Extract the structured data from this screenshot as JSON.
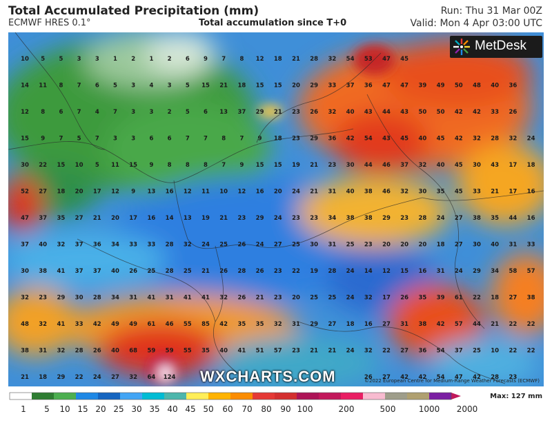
{
  "header": {
    "title": "Total Accumulated Precipitation (mm)",
    "model": "ECMWF HRES 0.1°",
    "accumulation": "Total accumulation since T+0",
    "run": "Run: Thu 31 Mar 00Z",
    "valid": "Valid: Mon 4 Apr 03:00 UTC"
  },
  "branding": {
    "logo_text": "MetDesk",
    "watermark": "WXCHARTS.COM",
    "credit": "©2022 European Centre for Medium-Range Weather Forecasts (ECMWF)"
  },
  "legend": {
    "max_label": "Max: 127 mm",
    "ticks": [
      "1",
      "5",
      "10",
      "15",
      "20",
      "25",
      "30",
      "35",
      "40",
      "45",
      "50",
      "60",
      "70",
      "80",
      "90",
      "100",
      "200",
      "500",
      "1000",
      "2000"
    ],
    "colors": [
      "#ffffff",
      "#2e7d32",
      "#4caf50",
      "#1e88e5",
      "#1565c0",
      "#42a5f5",
      "#00bcd4",
      "#4db6ac",
      "#ffee58",
      "#ffb300",
      "#fb8c00",
      "#e53935",
      "#d32f2f",
      "#ad1457",
      "#c2185b",
      "#e91e63",
      "#f8bbd0",
      "#9e9d8a",
      "#b0a070",
      "#7b1fa2"
    ]
  },
  "map": {
    "values": [
      [
        "10",
        "5",
        "5",
        "3",
        "3",
        "1",
        "2",
        "1",
        "2",
        "6",
        "9",
        "7",
        "8",
        "12",
        "18",
        "21",
        "28",
        "32",
        "54",
        "53",
        "47",
        "45",
        "",
        "",
        "",
        "",
        ""
      ],
      [
        "14",
        "11",
        "8",
        "7",
        "6",
        "5",
        "3",
        "4",
        "3",
        "5",
        "15",
        "21",
        "18",
        "15",
        "15",
        "20",
        "29",
        "33",
        "37",
        "36",
        "47",
        "47",
        "39",
        "49",
        "50",
        "48",
        "40",
        "36"
      ],
      [
        "12",
        "8",
        "6",
        "7",
        "4",
        "7",
        "3",
        "3",
        "2",
        "5",
        "6",
        "13",
        "37",
        "29",
        "21",
        "23",
        "26",
        "32",
        "40",
        "43",
        "44",
        "43",
        "50",
        "50",
        "42",
        "42",
        "33",
        "26"
      ],
      [
        "15",
        "9",
        "7",
        "5",
        "7",
        "3",
        "3",
        "6",
        "6",
        "7",
        "7",
        "8",
        "7",
        "9",
        "18",
        "23",
        "29",
        "36",
        "42",
        "54",
        "43",
        "45",
        "40",
        "45",
        "42",
        "32",
        "28",
        "32",
        "24"
      ],
      [
        "30",
        "22",
        "15",
        "10",
        "5",
        "11",
        "15",
        "9",
        "8",
        "8",
        "8",
        "7",
        "9",
        "15",
        "15",
        "19",
        "21",
        "23",
        "30",
        "44",
        "46",
        "37",
        "32",
        "40",
        "45",
        "30",
        "43",
        "17",
        "18"
      ],
      [
        "52",
        "27",
        "18",
        "20",
        "17",
        "12",
        "9",
        "13",
        "16",
        "12",
        "11",
        "10",
        "12",
        "16",
        "20",
        "24",
        "21",
        "31",
        "40",
        "38",
        "46",
        "32",
        "30",
        "35",
        "45",
        "33",
        "21",
        "17",
        "16"
      ],
      [
        "47",
        "37",
        "35",
        "27",
        "21",
        "20",
        "17",
        "16",
        "14",
        "13",
        "19",
        "21",
        "23",
        "29",
        "24",
        "23",
        "23",
        "34",
        "38",
        "38",
        "29",
        "23",
        "28",
        "24",
        "27",
        "38",
        "35",
        "44",
        "16"
      ],
      [
        "37",
        "40",
        "32",
        "37",
        "36",
        "34",
        "33",
        "33",
        "28",
        "32",
        "24",
        "25",
        "26",
        "24",
        "27",
        "25",
        "30",
        "31",
        "25",
        "23",
        "20",
        "20",
        "20",
        "18",
        "27",
        "30",
        "40",
        "31",
        "33"
      ],
      [
        "30",
        "38",
        "41",
        "37",
        "37",
        "40",
        "26",
        "25",
        "28",
        "25",
        "21",
        "26",
        "28",
        "26",
        "23",
        "22",
        "19",
        "28",
        "24",
        "14",
        "12",
        "15",
        "16",
        "31",
        "24",
        "29",
        "34",
        "58",
        "57"
      ],
      [
        "32",
        "23",
        "29",
        "30",
        "28",
        "34",
        "31",
        "41",
        "31",
        "41",
        "41",
        "32",
        "26",
        "21",
        "23",
        "20",
        "25",
        "25",
        "24",
        "32",
        "17",
        "26",
        "35",
        "39",
        "61",
        "22",
        "18",
        "27",
        "38"
      ],
      [
        "48",
        "32",
        "41",
        "33",
        "42",
        "49",
        "49",
        "61",
        "46",
        "55",
        "85",
        "42",
        "35",
        "35",
        "32",
        "31",
        "29",
        "27",
        "18",
        "16",
        "27",
        "31",
        "38",
        "42",
        "57",
        "44",
        "21",
        "22",
        "22"
      ],
      [
        "38",
        "31",
        "32",
        "28",
        "26",
        "40",
        "68",
        "59",
        "59",
        "55",
        "35",
        "40",
        "41",
        "51",
        "57",
        "23",
        "21",
        "21",
        "24",
        "32",
        "22",
        "27",
        "36",
        "54",
        "37",
        "25",
        "10",
        "22",
        "22"
      ],
      [
        "21",
        "18",
        "29",
        "22",
        "24",
        "27",
        "32",
        "64",
        "124",
        "",
        "",
        "",
        "",
        "",
        "",
        "",
        "",
        "",
        "",
        "26",
        "27",
        "42",
        "42",
        "54",
        "47",
        "42",
        "28",
        "23"
      ]
    ]
  }
}
